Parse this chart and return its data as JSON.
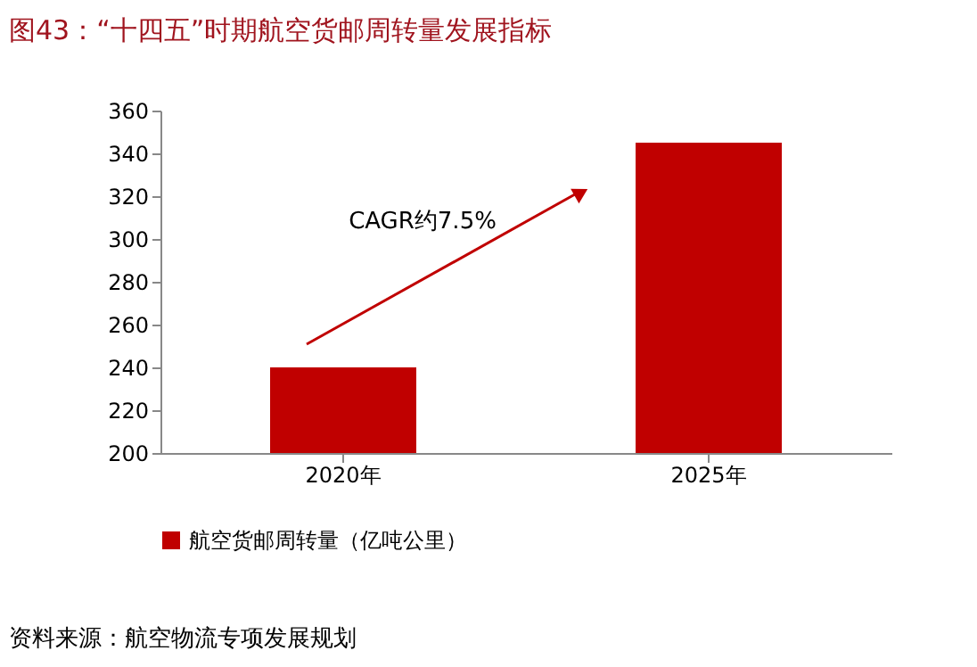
{
  "chart_data": {
    "type": "bar",
    "title": "图43：“十四五”时期航空货邮周转量发展指标",
    "categories": [
      "2020年",
      "2025年"
    ],
    "series": [
      {
        "name": "航空货邮周转量（亿吨公里）",
        "color": "#c00000",
        "values": [
          240,
          345
        ]
      }
    ],
    "ylim": [
      200,
      360
    ],
    "yticks": [
      200,
      220,
      240,
      260,
      280,
      300,
      320,
      340,
      360
    ],
    "grid": false,
    "legend": "bottom",
    "annotations": [
      "CAGR约7.5%",
      "资料来源：航空物流专项发展规划"
    ]
  }
}
